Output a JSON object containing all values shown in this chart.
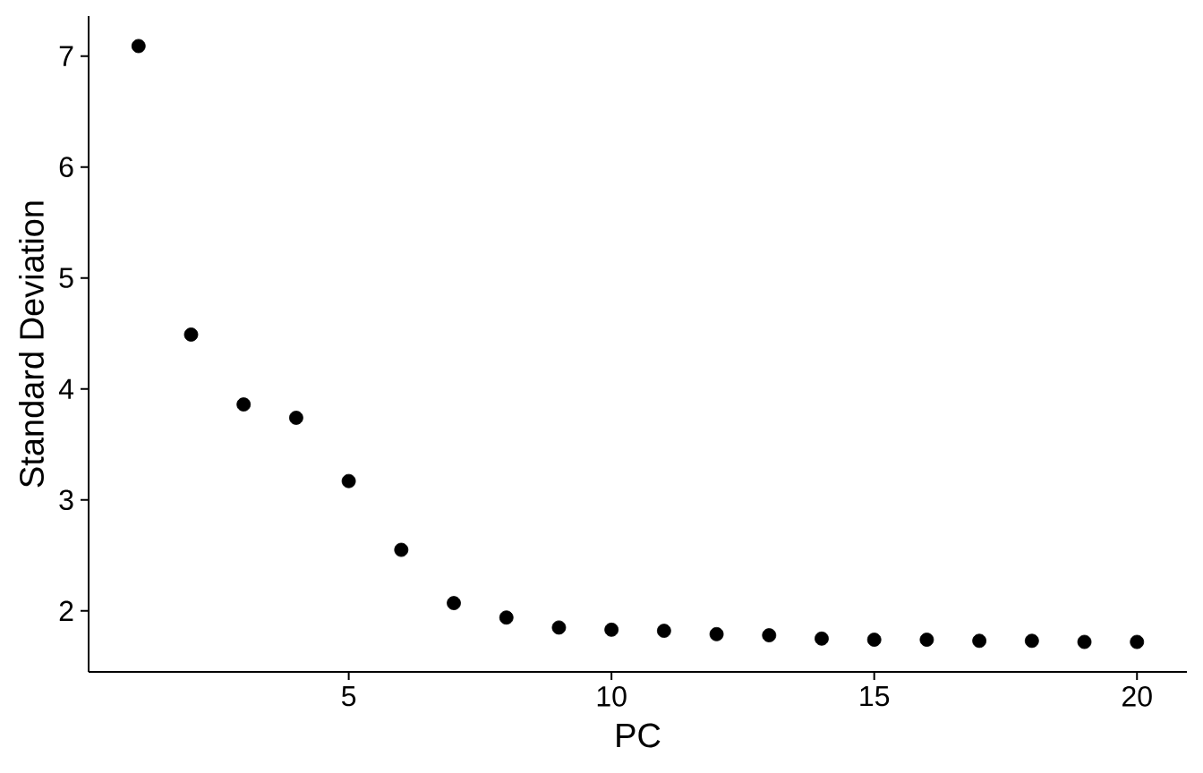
{
  "chart_data": {
    "type": "scatter",
    "xlabel": "PC",
    "ylabel": "Standard Deviation",
    "x": [
      1,
      2,
      3,
      4,
      5,
      6,
      7,
      8,
      9,
      10,
      11,
      12,
      13,
      14,
      15,
      16,
      17,
      18,
      19,
      20
    ],
    "values": [
      7.09,
      4.49,
      3.86,
      3.74,
      3.17,
      2.55,
      2.07,
      1.94,
      1.85,
      1.83,
      1.82,
      1.79,
      1.78,
      1.75,
      1.74,
      1.74,
      1.73,
      1.73,
      1.72,
      1.72
    ],
    "color": "#000000",
    "marker": "circle",
    "xlim": [
      0.05,
      20.95
    ],
    "ylim": [
      1.45,
      7.36
    ],
    "xticks": [
      5,
      10,
      15,
      20
    ],
    "yticks": [
      2,
      3,
      4,
      5,
      6,
      7
    ]
  }
}
